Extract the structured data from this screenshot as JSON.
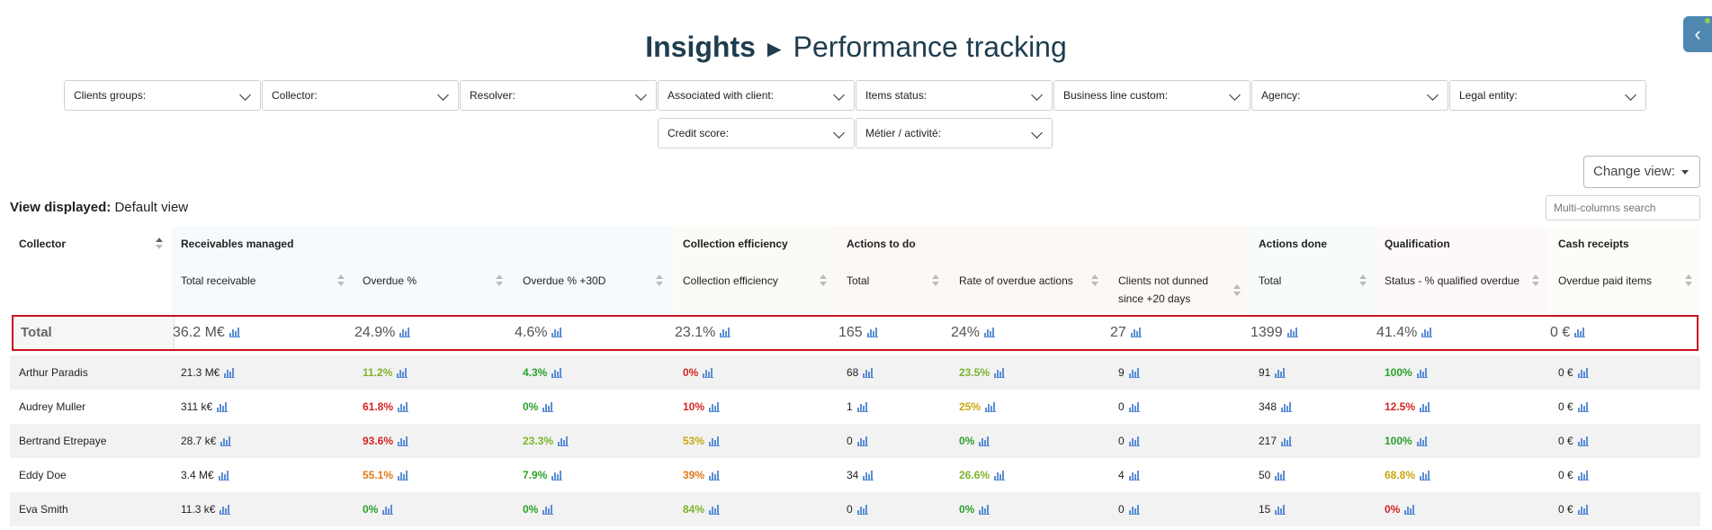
{
  "title": {
    "bold": "Insights",
    "arrow": "►",
    "rest": "Performance tracking"
  },
  "filters": {
    "clients_groups": "Clients groups:",
    "collector": "Collector:",
    "resolver": "Resolver:",
    "associated_with_client": "Associated with client:",
    "items_status": "Items status:",
    "business_line_custom": "Business line custom:",
    "agency": "Agency:",
    "legal_entity": "Legal entity:",
    "credit_score": "Credit score:",
    "metier_activite": "Métier / activité:"
  },
  "change_view": "Change view:",
  "view_displayed": {
    "label": "View displayed:",
    "value": "Default view"
  },
  "search": {
    "placeholder": "Multi-columns search"
  },
  "table": {
    "collector_header": "Collector",
    "groups": {
      "receivables": "Receivables managed",
      "collection": "Collection efficiency",
      "actions_todo": "Actions to do",
      "actions_done": "Actions done",
      "qualification": "Qualification",
      "cash": "Cash receipts"
    },
    "columns": {
      "total_receivable": "Total receivable",
      "overdue_pct": "Overdue %",
      "overdue_30d": "Overdue % +30D",
      "collection_efficiency": "Collection efficiency",
      "todo_total": "Total",
      "rate_overdue_actions": "Rate of overdue actions",
      "clients_not_dunned_1": "Clients not dunned",
      "clients_not_dunned_2": "since +20 days",
      "done_total": "Total",
      "status_qualified": "Status - % qualified overdue",
      "overdue_paid": "Overdue paid items"
    },
    "total": {
      "label": "Total",
      "values": [
        "36.2 M€",
        "24.9%",
        "4.6%",
        "23.1%",
        "165",
        "24%",
        "27",
        "1399",
        "41.4%",
        "0 €"
      ]
    },
    "rows": [
      {
        "name": "Arthur Paradis",
        "values": [
          "21.3 M€",
          "11.2%",
          "4.3%",
          "0%",
          "68",
          "23.5%",
          "9",
          "91",
          "100%",
          "0 €"
        ]
      },
      {
        "name": "Audrey Muller",
        "values": [
          "311 k€",
          "61.8%",
          "0%",
          "10%",
          "1",
          "25%",
          "0",
          "348",
          "12.5%",
          "0 €"
        ]
      },
      {
        "name": "Bertrand Etrepaye",
        "values": [
          "28.7 k€",
          "93.6%",
          "23.3%",
          "53%",
          "0",
          "0%",
          "0",
          "217",
          "100%",
          "0 €"
        ]
      },
      {
        "name": "Eddy Doe",
        "values": [
          "3.4 M€",
          "55.1%",
          "7.9%",
          "39%",
          "34",
          "26.6%",
          "4",
          "50",
          "68.8%",
          "0 €"
        ]
      },
      {
        "name": "Eva Smith",
        "values": [
          "11.3 k€",
          "0%",
          "0%",
          "84%",
          "0",
          "0%",
          "0",
          "15",
          "0%",
          "0 €"
        ]
      }
    ]
  },
  "colors": {
    "title": "#1f3d4f",
    "total_border": "#c8141e",
    "bar_icon": "#5b8fd6"
  }
}
